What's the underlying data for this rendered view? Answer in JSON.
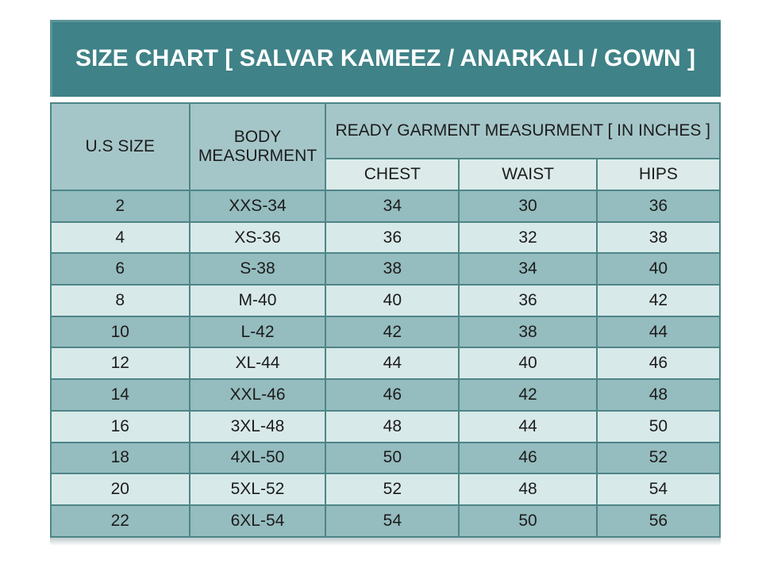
{
  "title": "SIZE CHART [ SALVAR KAMEEZ / ANARKALI / GOWN ]",
  "table": {
    "header": {
      "us_size": "U.S SIZE",
      "body_measurement": "BODY MEASURMENT",
      "ready_garment": "READY GARMENT MEASURMENT [ IN INCHES ]",
      "chest": "CHEST",
      "waist": "WAIST",
      "hips": "HIPS"
    },
    "rows": [
      [
        "2",
        "XXS-34",
        "34",
        "30",
        "36"
      ],
      [
        "4",
        "XS-36",
        "36",
        "32",
        "38"
      ],
      [
        "6",
        "S-38",
        "38",
        "34",
        "40"
      ],
      [
        "8",
        "M-40",
        "40",
        "36",
        "42"
      ],
      [
        "10",
        "L-42",
        "42",
        "38",
        "44"
      ],
      [
        "12",
        "XL-44",
        "44",
        "40",
        "46"
      ],
      [
        "14",
        "XXL-46",
        "46",
        "42",
        "48"
      ],
      [
        "16",
        "3XL-48",
        "48",
        "44",
        "50"
      ],
      [
        "18",
        "4XL-50",
        "50",
        "46",
        "52"
      ],
      [
        "20",
        "5XL-52",
        "52",
        "48",
        "54"
      ],
      [
        "22",
        "6XL-54",
        "54",
        "50",
        "56"
      ]
    ]
  },
  "colors": {
    "title_bg": "#3f8287",
    "header_bg": "#a5c6c9",
    "subheader_bg": "#dcebe9",
    "row_dark": "#95bcbe",
    "row_light": "#d8e9e9",
    "border": "#4e8588",
    "text": "#1c1c1c",
    "title_text": "#ffffff"
  },
  "chart_data": {
    "type": "table",
    "title": "SIZE CHART [ SALVAR KAMEEZ / ANARKALI / GOWN ]",
    "column_group_header": "READY GARMENT MEASURMENT [ IN INCHES ]",
    "column_group_applies_to": [
      "CHEST",
      "WAIST",
      "HIPS"
    ],
    "columns": [
      "U.S SIZE",
      "BODY MEASURMENT",
      "CHEST",
      "WAIST",
      "HIPS"
    ],
    "rows": [
      [
        "2",
        "XXS-34",
        34,
        30,
        36
      ],
      [
        "4",
        "XS-36",
        36,
        32,
        38
      ],
      [
        "6",
        "S-38",
        38,
        34,
        40
      ],
      [
        "8",
        "M-40",
        40,
        36,
        42
      ],
      [
        "10",
        "L-42",
        42,
        38,
        44
      ],
      [
        "12",
        "XL-44",
        44,
        40,
        46
      ],
      [
        "14",
        "XXL-46",
        46,
        42,
        48
      ],
      [
        "16",
        "3XL-48",
        48,
        44,
        50
      ],
      [
        "18",
        "4XL-50",
        50,
        46,
        52
      ],
      [
        "20",
        "5XL-52",
        52,
        48,
        54
      ],
      [
        "22",
        "6XL-54",
        54,
        50,
        56
      ]
    ]
  }
}
